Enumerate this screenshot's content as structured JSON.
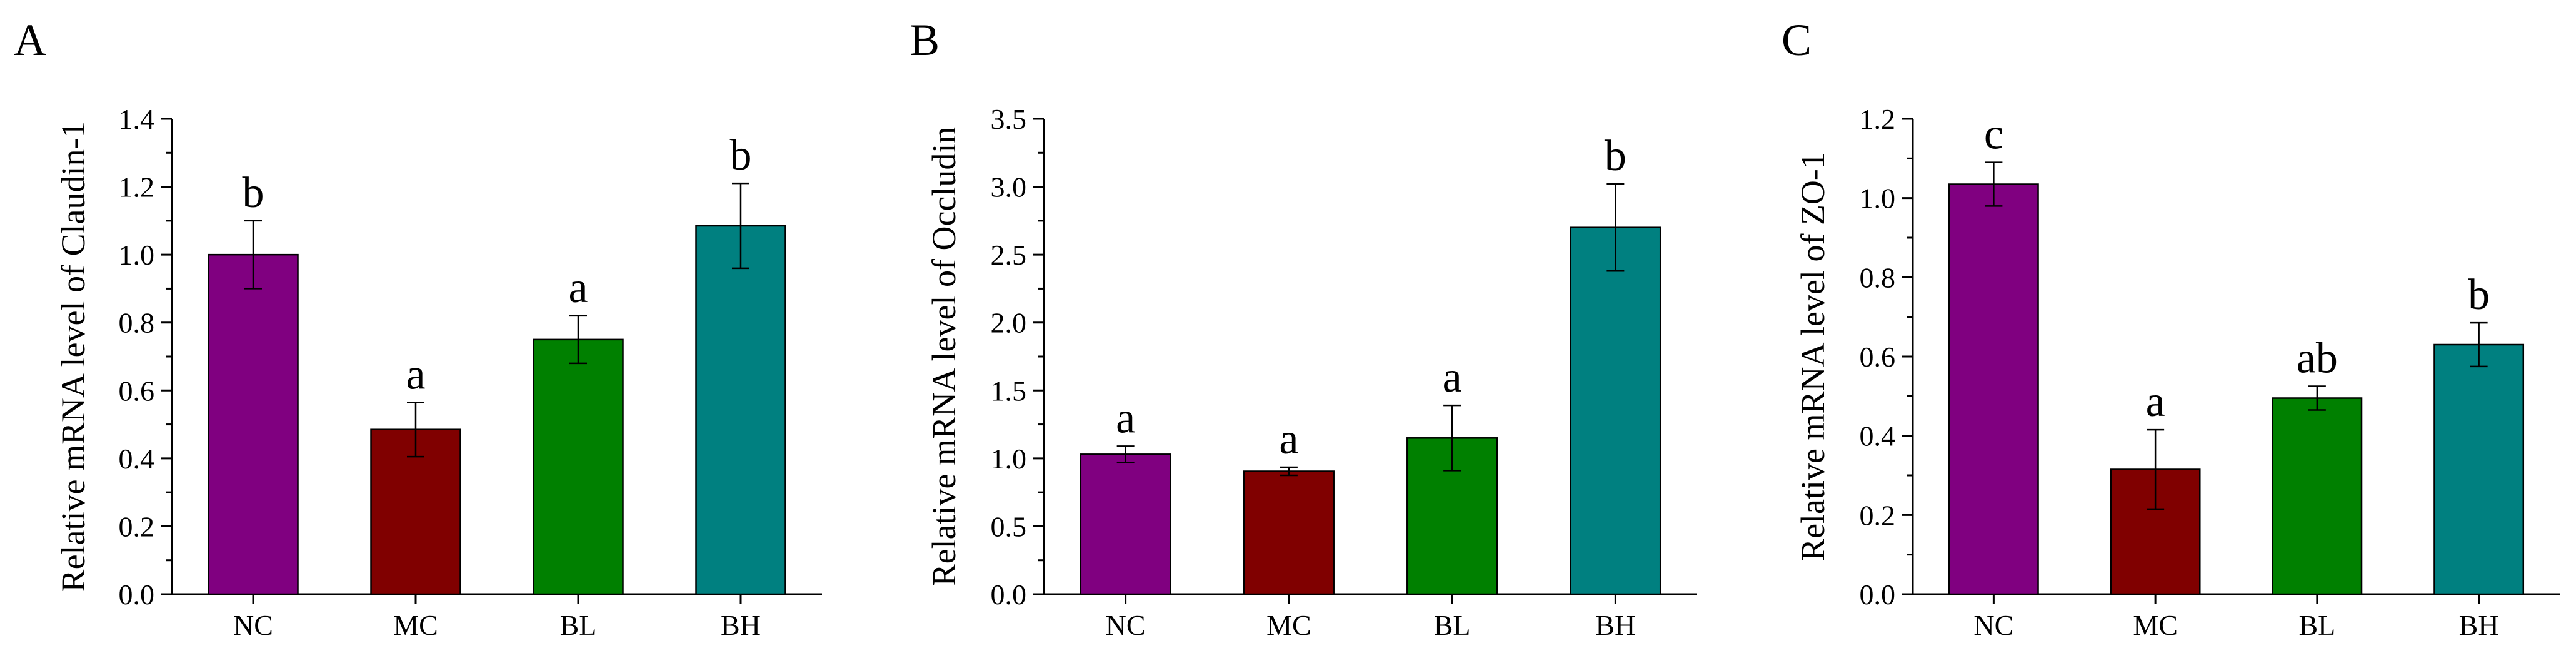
{
  "chart_data": [
    {
      "type": "bar",
      "panel_label": "A",
      "categories": [
        "NC",
        "MC",
        "BL",
        "BH"
      ],
      "values": [
        1.0,
        0.485,
        0.75,
        1.085
      ],
      "errors": [
        0.1,
        0.08,
        0.07,
        0.125
      ],
      "significance": [
        "b",
        "a",
        "a",
        "b"
      ],
      "colors": [
        "#800080",
        "#800000",
        "#008000",
        "#008080"
      ],
      "ylabel": "Relative mRNA level of Claudin-1",
      "xlabel": "",
      "ylim": [
        0,
        1.4
      ],
      "yticks": [
        0.0,
        0.2,
        0.4,
        0.6,
        0.8,
        1.0,
        1.2,
        1.4
      ],
      "ytick_labels": [
        "0.0",
        "0.2",
        "0.4",
        "0.6",
        "0.8",
        "1.0",
        "1.2",
        "1.4"
      ],
      "grid": false,
      "legend": "none"
    },
    {
      "type": "bar",
      "panel_label": "B",
      "categories": [
        "NC",
        "MC",
        "BL",
        "BH"
      ],
      "values": [
        1.03,
        0.905,
        1.15,
        2.7
      ],
      "errors": [
        0.06,
        0.03,
        0.24,
        0.32
      ],
      "significance": [
        "a",
        "a",
        "a",
        "b"
      ],
      "colors": [
        "#800080",
        "#800000",
        "#008000",
        "#008080"
      ],
      "ylabel": "Relative mRNA level of Occludin",
      "xlabel": "",
      "ylim": [
        0,
        3.5
      ],
      "yticks": [
        0.0,
        0.5,
        1.0,
        1.5,
        2.0,
        2.5,
        3.0,
        3.5
      ],
      "ytick_labels": [
        "0.0",
        "0.5",
        "1.0",
        "1.5",
        "2.0",
        "2.5",
        "3.0",
        "3.5"
      ],
      "grid": false,
      "legend": "none"
    },
    {
      "type": "bar",
      "panel_label": "C",
      "categories": [
        "NC",
        "MC",
        "BL",
        "BH"
      ],
      "values": [
        1.035,
        0.315,
        0.495,
        0.63
      ],
      "errors": [
        0.055,
        0.1,
        0.03,
        0.055
      ],
      "significance": [
        "c",
        "a",
        "ab",
        "b"
      ],
      "colors": [
        "#800080",
        "#800000",
        "#008000",
        "#008080"
      ],
      "ylabel": "Relative mRNA level of ZO-1",
      "xlabel": "",
      "ylim": [
        0,
        1.2
      ],
      "yticks": [
        0.0,
        0.2,
        0.4,
        0.6,
        0.8,
        1.0,
        1.2
      ],
      "ytick_labels": [
        "0.0",
        "0.2",
        "0.4",
        "0.6",
        "0.8",
        "1.0",
        "1.2"
      ],
      "grid": false,
      "legend": "none"
    }
  ]
}
